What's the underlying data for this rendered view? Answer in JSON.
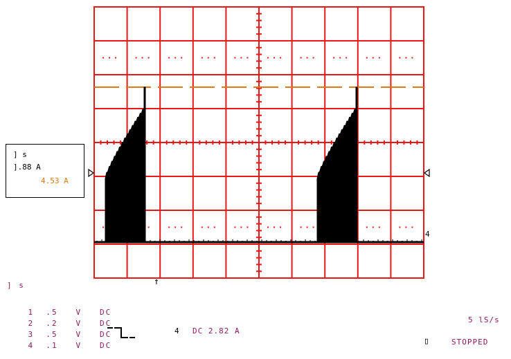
{
  "scope": {
    "colors": {
      "grid": "#e81818",
      "trace_black": "#000000",
      "trace_orange": "#e07a10",
      "text": "#8a1a5e"
    },
    "readout": {
      "header": "] s",
      "ch_a": "].88 A",
      "ch_b": "4.53 A"
    },
    "channels_header": "] s",
    "channels": [
      {
        "num": "1",
        "scale": ".5",
        "unit": "V",
        "coupling": "DC"
      },
      {
        "num": "2",
        "scale": ".2",
        "unit": "V",
        "coupling": "DC"
      },
      {
        "num": "3",
        "scale": ".5",
        "unit": "V",
        "coupling": "DC"
      },
      {
        "num": "4",
        "scale": ".1",
        "unit": "V",
        "coupling": "DC"
      }
    ],
    "trigger": {
      "channel": "4",
      "text": "DC 2.82 A"
    },
    "sample_rate": "5 lS/s",
    "status": "STOPPED",
    "ch4_marker": "4",
    "time_marker": "↑"
  }
}
